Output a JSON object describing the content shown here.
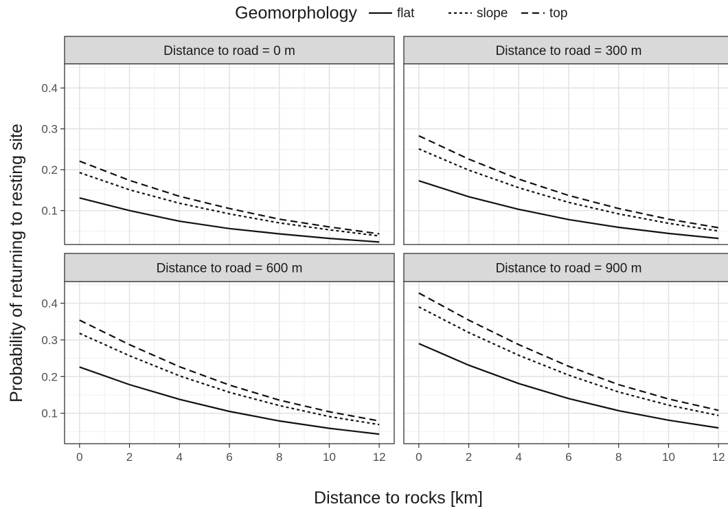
{
  "chart_data": {
    "type": "line",
    "xlabel": "Distance to rocks [km]",
    "ylabel": "Probability of returning to resting site",
    "xlim": [
      -0.6,
      12.6
    ],
    "ylim": [
      0.017,
      0.459
    ],
    "x_ticks": [
      0,
      2,
      4,
      6,
      8,
      10,
      12
    ],
    "y_ticks": [
      0.1,
      0.2,
      0.3,
      0.4
    ],
    "grid": true,
    "legend": {
      "title": "Geomorphology",
      "placement": "top",
      "entries": [
        {
          "label": "flat",
          "dash": "solid"
        },
        {
          "label": "slope",
          "dash": "dotted"
        },
        {
          "label": "top",
          "dash": "dashed"
        }
      ]
    },
    "facets": [
      {
        "label": "Distance to road = 0 m",
        "series": [
          {
            "name": "flat",
            "x": [
              0,
              2,
              4,
              6,
              8,
              10,
              12
            ],
            "y": [
              0.131,
              0.1,
              0.074,
              0.056,
              0.043,
              0.032,
              0.023
            ]
          },
          {
            "name": "slope",
            "x": [
              0,
              2,
              4,
              6,
              8,
              10,
              12
            ],
            "y": [
              0.193,
              0.151,
              0.118,
              0.092,
              0.07,
              0.053,
              0.038
            ]
          },
          {
            "name": "top",
            "x": [
              0,
              2,
              4,
              6,
              8,
              10,
              12
            ],
            "y": [
              0.221,
              0.174,
              0.135,
              0.105,
              0.079,
              0.06,
              0.043
            ]
          }
        ]
      },
      {
        "label": "Distance to road = 300 m",
        "series": [
          {
            "name": "flat",
            "x": [
              0,
              2,
              4,
              6,
              8,
              10,
              12
            ],
            "y": [
              0.173,
              0.134,
              0.103,
              0.078,
              0.059,
              0.044,
              0.032
            ]
          },
          {
            "name": "slope",
            "x": [
              0,
              2,
              4,
              6,
              8,
              10,
              12
            ],
            "y": [
              0.251,
              0.199,
              0.156,
              0.12,
              0.092,
              0.069,
              0.05
            ]
          },
          {
            "name": "top",
            "x": [
              0,
              2,
              4,
              6,
              8,
              10,
              12
            ],
            "y": [
              0.283,
              0.226,
              0.177,
              0.137,
              0.105,
              0.079,
              0.058
            ]
          }
        ]
      },
      {
        "label": "Distance to road = 600 m",
        "series": [
          {
            "name": "flat",
            "x": [
              0,
              2,
              4,
              6,
              8,
              10,
              12
            ],
            "y": [
              0.226,
              0.178,
              0.138,
              0.105,
              0.079,
              0.059,
              0.043
            ]
          },
          {
            "name": "slope",
            "x": [
              0,
              2,
              4,
              6,
              8,
              10,
              12
            ],
            "y": [
              0.318,
              0.257,
              0.202,
              0.157,
              0.121,
              0.091,
              0.069
            ]
          },
          {
            "name": "top",
            "x": [
              0,
              2,
              4,
              6,
              8,
              10,
              12
            ],
            "y": [
              0.354,
              0.287,
              0.227,
              0.177,
              0.136,
              0.104,
              0.079
            ]
          }
        ]
      },
      {
        "label": "Distance to road = 900 m",
        "series": [
          {
            "name": "flat",
            "x": [
              0,
              2,
              4,
              6,
              8,
              10,
              12
            ],
            "y": [
              0.29,
              0.231,
              0.181,
              0.14,
              0.107,
              0.081,
              0.06
            ]
          },
          {
            "name": "slope",
            "x": [
              0,
              2,
              4,
              6,
              8,
              10,
              12
            ],
            "y": [
              0.39,
              0.32,
              0.258,
              0.204,
              0.158,
              0.122,
              0.094
            ]
          },
          {
            "name": "top",
            "x": [
              0,
              2,
              4,
              6,
              8,
              10,
              12
            ],
            "y": [
              0.428,
              0.354,
              0.287,
              0.228,
              0.178,
              0.139,
              0.108
            ]
          }
        ]
      }
    ]
  }
}
